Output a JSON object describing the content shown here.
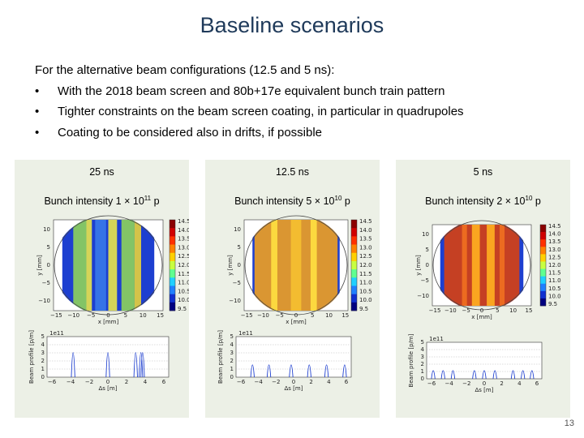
{
  "slide": {
    "title": "Baseline scenarios",
    "intro": "For the alternative beam configurations (12.5 and 5 ns):",
    "bullets": [
      "With the 2018 beam screen and 80b+17e equivalent bunch train pattern",
      "Tighter constraints on the beam screen coating, in particular in quadrupoles",
      "Coating to be considered also in drifts, if possible"
    ],
    "page_number": "13"
  },
  "panels": [
    {
      "rate": "25 ns",
      "intensity_text": "Bunch intensity 1 × 10",
      "intensity_exp": "11",
      "intensity_unit": " p"
    },
    {
      "rate": "12.5 ns",
      "intensity_text": "Bunch intensity 5 × 10",
      "intensity_exp": "10",
      "intensity_unit": " p"
    },
    {
      "rate": "5 ns",
      "intensity_text": "Bunch intensity 2 × 10",
      "intensity_exp": "10",
      "intensity_unit": " p"
    }
  ],
  "plot_labels": {
    "x_map": "x [mm]",
    "y_map": "y [mm]",
    "x_profile": "Δs [m]",
    "y_profile": "Beam profile [p/m]",
    "scale": "1e11",
    "map_x_ticks": [
      "−15",
      "−10",
      "−5",
      "0",
      "5",
      "10",
      "15"
    ],
    "map_y_ticks": [
      "10",
      "5",
      "0",
      "−5",
      "−10"
    ],
    "colorbar_ticks": [
      "14.5",
      "14.0",
      "13.5",
      "13.0",
      "12.5",
      "12.0",
      "11.5",
      "11.0",
      "10.5",
      "10.0",
      "9.5"
    ],
    "profile_x_ticks": [
      "−6",
      "−4",
      "−2",
      "0",
      "2",
      "4",
      "6"
    ],
    "profile_y_ticks": [
      "5",
      "4",
      "3",
      "2",
      "1",
      "0"
    ]
  }
}
